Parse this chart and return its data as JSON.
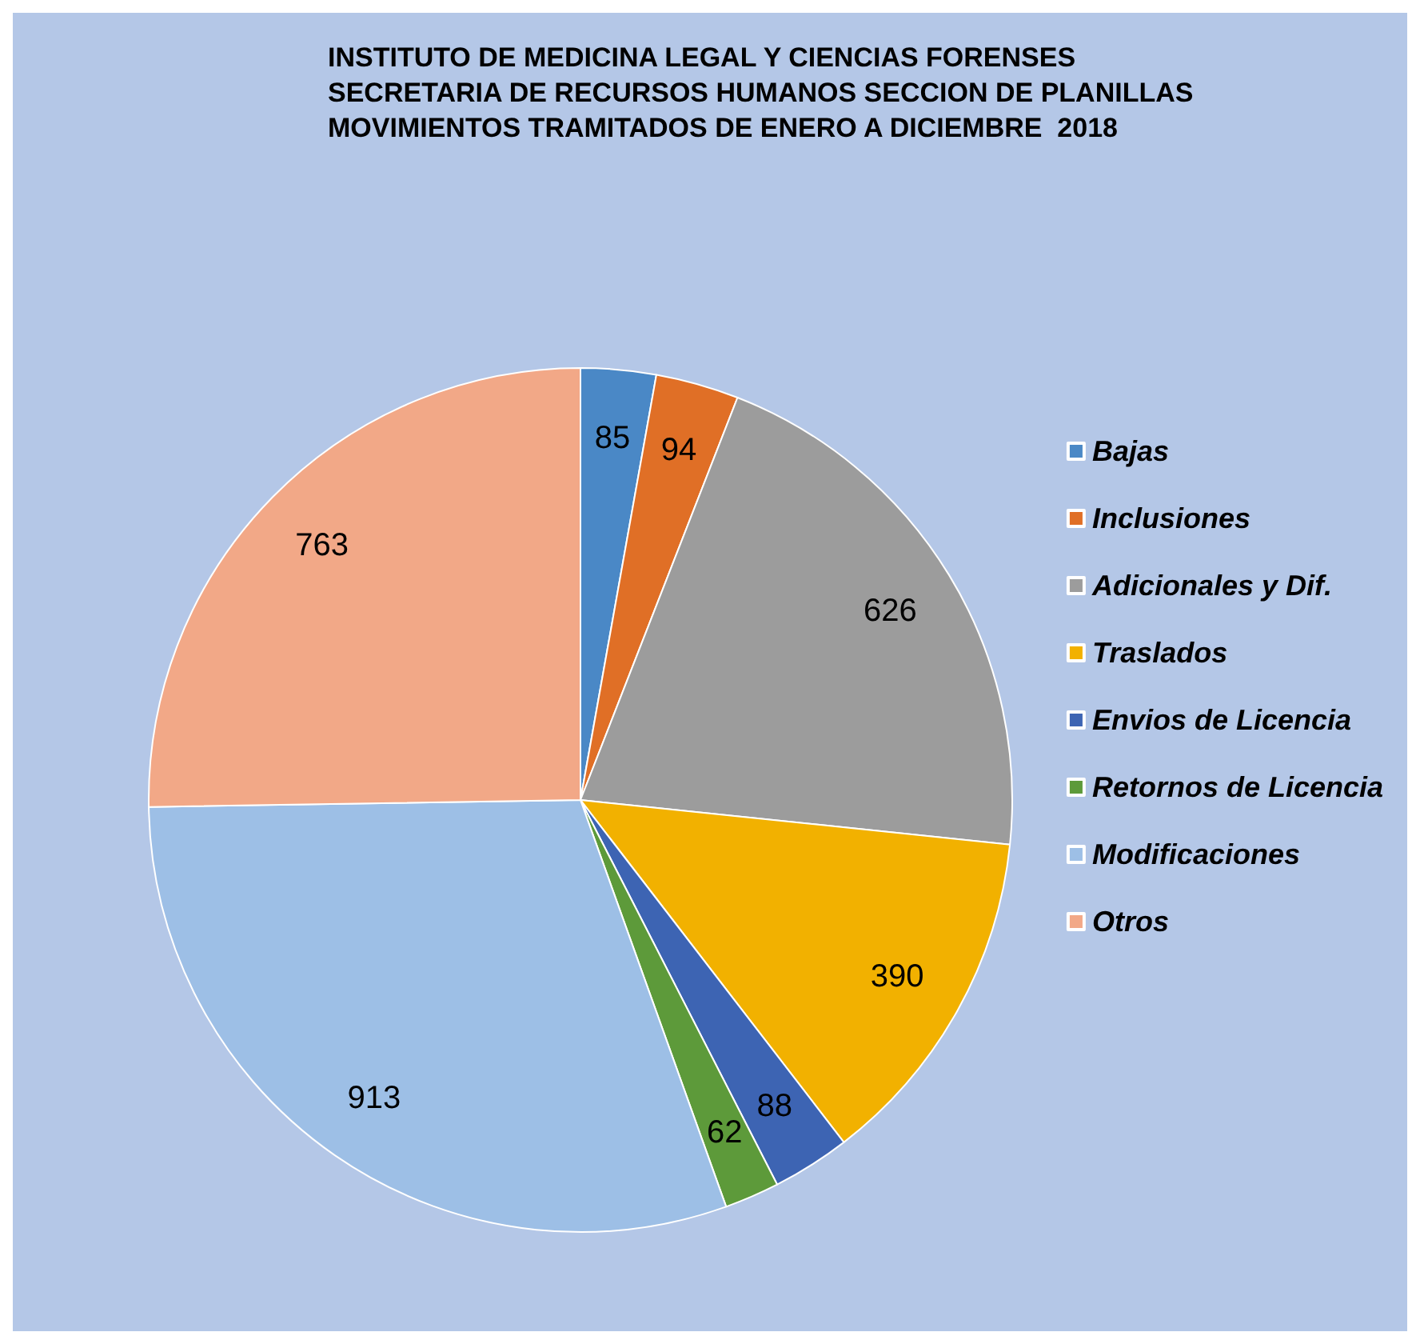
{
  "chart_data": {
    "type": "pie",
    "title": "INSTITUTO DE MEDICINA LEGAL Y CIENCIAS FORENSES\nSECRETARIA DE RECURSOS HUMANOS SECCION DE PLANILLAS\nMOVIMIENTOS TRAMITADOS DE ENERO A DICIEMBRE  2018",
    "categories": [
      "Bajas",
      "Inclusiones",
      "Adicionales y Dif.",
      "Traslados",
      "Envios de Licencia",
      "Retornos de Licencia",
      "Modificaciones",
      "Otros"
    ],
    "values": [
      85,
      94,
      626,
      390,
      88,
      62,
      913,
      763
    ],
    "colors": [
      "#4a88c6",
      "#e06f26",
      "#9c9c9c",
      "#f2b100",
      "#3d64b3",
      "#5d9a3a",
      "#9dbfe6",
      "#f2a887"
    ],
    "data_labels": true,
    "legend": "right"
  }
}
